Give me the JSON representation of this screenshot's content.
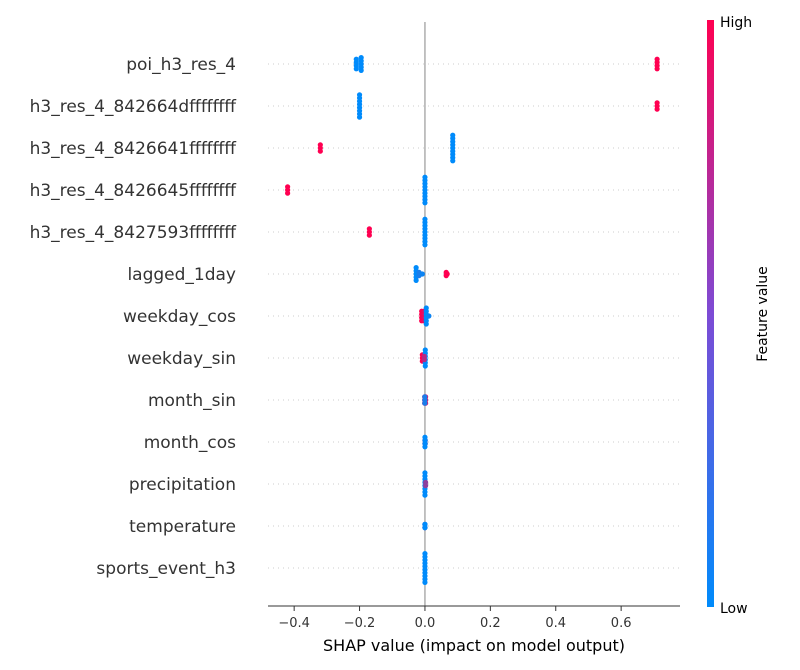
{
  "chart_data": {
    "type": "scatter",
    "subtype": "shap-beeswarm",
    "xlabel": "SHAP value (impact on model output)",
    "xlim": [
      -0.48,
      0.78
    ],
    "xticks": [
      -0.4,
      -0.2,
      0.0,
      0.2,
      0.4,
      0.6
    ],
    "xtick_labels": [
      "−0.4",
      "−0.2",
      "0.0",
      "0.2",
      "0.4",
      "0.6"
    ],
    "colorbar": {
      "label": "Feature value",
      "high_label": "High",
      "low_label": "Low",
      "low_color": "#008bfb",
      "high_color": "#ff0051"
    },
    "colors": {
      "low": "#008bfb",
      "high": "#ff0051",
      "zero_line": "#999999",
      "row_grid": "#cccccc"
    },
    "features": [
      {
        "name": "poi_h3_res_4",
        "points": [
          {
            "x": -0.21,
            "v": 0,
            "n": 4
          },
          {
            "x": -0.195,
            "v": 0,
            "n": 5
          },
          {
            "x": 0.71,
            "v": 1,
            "n": 4
          }
        ]
      },
      {
        "name": "h3_res_4_842664dffffffff",
        "points": [
          {
            "x": -0.2,
            "v": 0,
            "n": 8
          },
          {
            "x": 0.71,
            "v": 1,
            "n": 3
          }
        ]
      },
      {
        "name": "h3_res_4_8426641ffffffff",
        "points": [
          {
            "x": -0.32,
            "v": 1,
            "n": 3
          },
          {
            "x": 0.085,
            "v": 0,
            "n": 9
          }
        ]
      },
      {
        "name": "h3_res_4_8426645ffffffff",
        "points": [
          {
            "x": -0.42,
            "v": 1,
            "n": 3
          },
          {
            "x": 0.0,
            "v": 0,
            "n": 9
          }
        ]
      },
      {
        "name": "h3_res_4_8427593ffffffff",
        "points": [
          {
            "x": -0.17,
            "v": 1,
            "n": 3
          },
          {
            "x": 0.0,
            "v": 0,
            "n": 9
          }
        ]
      },
      {
        "name": "lagged_1day",
        "points": [
          {
            "x": -0.027,
            "v": 0,
            "n": 5
          },
          {
            "x": -0.018,
            "v": 0.1,
            "n": 2
          },
          {
            "x": -0.008,
            "v": 0.05,
            "n": 1
          },
          {
            "x": 0.065,
            "v": 1,
            "n": 2
          },
          {
            "x": 0.068,
            "v": 1,
            "n": 1
          }
        ]
      },
      {
        "name": "weekday_cos",
        "points": [
          {
            "x": -0.01,
            "v": 1,
            "n": 4
          },
          {
            "x": -0.003,
            "v": 0.9,
            "n": 4
          },
          {
            "x": 0.004,
            "v": 0,
            "n": 6
          },
          {
            "x": 0.012,
            "v": 0.05,
            "n": 1
          }
        ]
      },
      {
        "name": "weekday_sin",
        "points": [
          {
            "x": -0.008,
            "v": 1,
            "n": 3
          },
          {
            "x": 0.001,
            "v": 0,
            "n": 6
          },
          {
            "x": -0.002,
            "v": 0.7,
            "n": 2
          }
        ]
      },
      {
        "name": "month_sin",
        "points": [
          {
            "x": -0.001,
            "v": 0.5,
            "n": 3
          },
          {
            "x": 0.002,
            "v": 1,
            "n": 3
          },
          {
            "x": 0.0,
            "v": 0.1,
            "n": 3
          }
        ]
      },
      {
        "name": "month_cos",
        "points": [
          {
            "x": 0.0,
            "v": 1,
            "n": 2
          },
          {
            "x": 0.001,
            "v": 0.3,
            "n": 2
          },
          {
            "x": 0.0,
            "v": 0,
            "n": 4
          }
        ]
      },
      {
        "name": "precipitation",
        "points": [
          {
            "x": 0.0,
            "v": 0,
            "n": 8
          },
          {
            "x": 0.002,
            "v": 0.55,
            "n": 2
          }
        ]
      },
      {
        "name": "temperature",
        "points": [
          {
            "x": 0.0,
            "v": 0.6,
            "n": 2
          },
          {
            "x": 0.0,
            "v": 0.15,
            "n": 2
          },
          {
            "x": 0.0,
            "v": 0,
            "n": 2
          }
        ]
      },
      {
        "name": "sports_event_h3",
        "points": [
          {
            "x": 0.0,
            "v": 0,
            "n": 10
          }
        ]
      }
    ]
  }
}
